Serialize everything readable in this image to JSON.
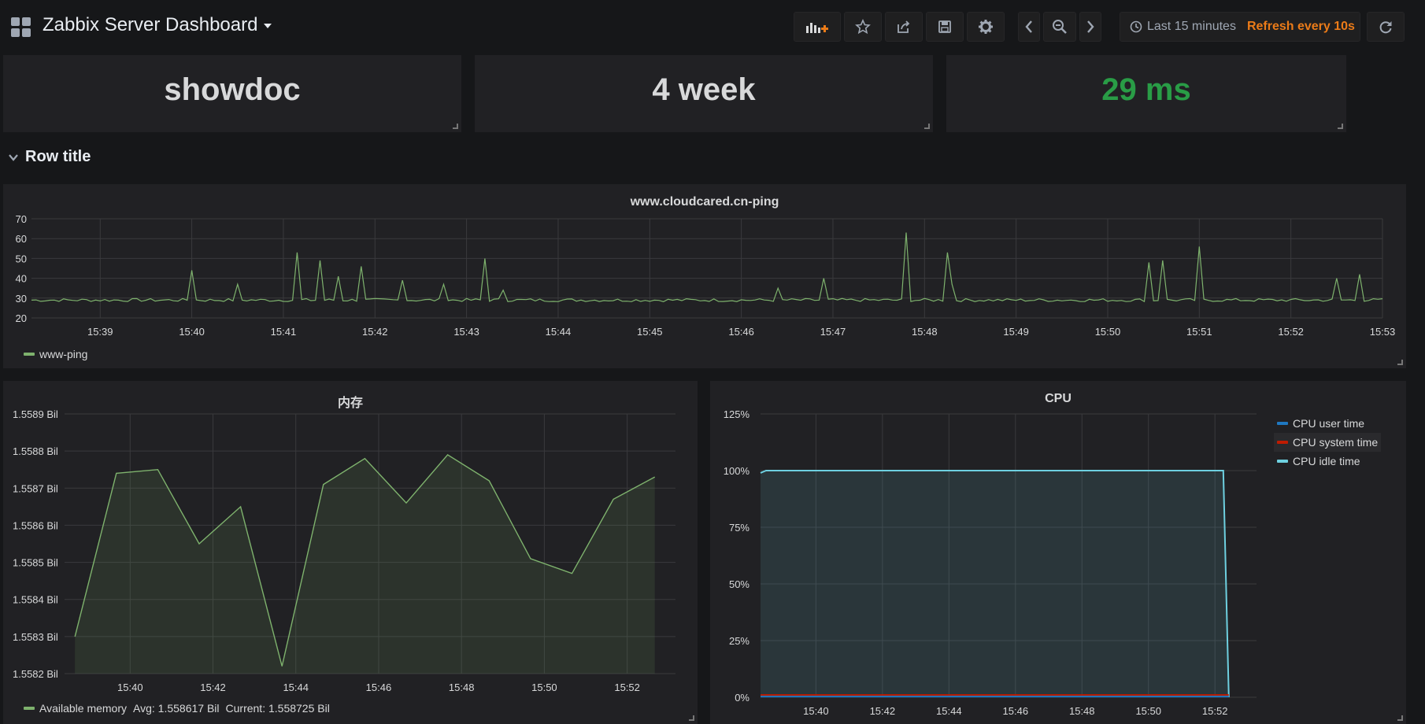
{
  "header": {
    "title": "Zabbix Server Dashboard",
    "time_range": "Last 15 minutes",
    "refresh": "Refresh every 10s"
  },
  "icons": {
    "apps": "grid-icon",
    "add_panel": "add-panel-icon",
    "star": "star-icon",
    "share": "share-icon",
    "save": "save-icon",
    "settings": "gear-icon",
    "prev": "chevron-left-icon",
    "zoom_out": "zoom-out-icon",
    "next": "chevron-right-icon",
    "clock": "clock-icon",
    "refresh": "refresh-icon"
  },
  "colors": {
    "accent_orange": "#eb7b18",
    "ping_green": "#7eb26d",
    "stat_green": "#299c46",
    "cpu_user": "#1f78c1",
    "cpu_system": "#bf1b00",
    "cpu_idle": "#6ed0e0"
  },
  "stats": [
    {
      "value": "showdoc",
      "color": "#d8d9da"
    },
    {
      "value": "4 week",
      "color": "#d8d9da"
    },
    {
      "value": "29 ms",
      "color": "#299c46"
    }
  ],
  "row": {
    "title": "Row title"
  },
  "ping_panel": {
    "title": "www.cloudcared.cn-ping",
    "legend": "www-ping",
    "chart_data": {
      "type": "line",
      "y_ticks": [
        20,
        30,
        40,
        50,
        60,
        70
      ],
      "ylim": [
        20,
        70
      ],
      "x_ticks": [
        "15:39",
        "15:40",
        "15:41",
        "15:42",
        "15:43",
        "15:44",
        "15:45",
        "15:46",
        "15:47",
        "15:48",
        "15:49",
        "15:50",
        "15:51",
        "15:52",
        "15:53"
      ],
      "series": [
        {
          "name": "www-ping",
          "baseline": 29,
          "spikes": [
            [
              "15:40:00",
              44
            ],
            [
              "15:40:30",
              37
            ],
            [
              "15:41:08",
              53
            ],
            [
              "15:41:24",
              49
            ],
            [
              "15:41:36",
              41
            ],
            [
              "15:41:50",
              46
            ],
            [
              "15:42:18",
              39
            ],
            [
              "15:42:45",
              37
            ],
            [
              "15:43:12",
              50
            ],
            [
              "15:43:23",
              34
            ],
            [
              "15:46:24",
              35
            ],
            [
              "15:46:53",
              40
            ],
            [
              "15:47:48",
              63
            ],
            [
              "15:48:16",
              53
            ],
            [
              "15:48:19",
              37
            ],
            [
              "15:50:26",
              48
            ],
            [
              "15:50:36",
              49
            ],
            [
              "15:51:00",
              56
            ],
            [
              "15:52:30",
              40
            ],
            [
              "15:52:46",
              42
            ]
          ]
        }
      ],
      "grid": true,
      "legend_position": "bottom-left"
    }
  },
  "memory_panel": {
    "title": "内存",
    "legend": {
      "name": "Available memory",
      "avg": "Avg: 1.558617 Bil",
      "current": "Current: 1.558725 Bil"
    },
    "chart_data": {
      "type": "area",
      "y_ticks": [
        "1.5582 Bil",
        "1.5583 Bil",
        "1.5584 Bil",
        "1.5585 Bil",
        "1.5586 Bil",
        "1.5587 Bil",
        "1.5588 Bil",
        "1.5589 Bil"
      ],
      "ylim": [
        1.5582,
        1.5589
      ],
      "x_ticks": [
        "15:40",
        "15:42",
        "15:44",
        "15:46",
        "15:48",
        "15:50",
        "15:52"
      ],
      "series": [
        {
          "name": "Available memory",
          "x": [
            "15:38:40",
            "15:39:40",
            "15:40:40",
            "15:41:40",
            "15:42:40",
            "15:43:40",
            "15:44:40",
            "15:45:40",
            "15:46:40",
            "15:47:40",
            "15:48:40",
            "15:49:40",
            "15:50:40",
            "15:51:40",
            "15:52:40"
          ],
          "values": [
            1.5583,
            1.55874,
            1.55875,
            1.55855,
            1.55865,
            1.55822,
            1.55871,
            1.55878,
            1.55866,
            1.55879,
            1.55872,
            1.55851,
            1.55847,
            1.55867,
            1.55873
          ]
        }
      ],
      "grid": true,
      "legend_position": "bottom-left"
    }
  },
  "cpu_panel": {
    "title": "CPU",
    "legend": [
      {
        "name": "CPU user time",
        "color": "#1f78c1"
      },
      {
        "name": "CPU system time",
        "color": "#bf1b00"
      },
      {
        "name": "CPU idle time",
        "color": "#6ed0e0"
      }
    ],
    "chart_data": {
      "type": "area",
      "y_ticks": [
        "0%",
        "25%",
        "50%",
        "75%",
        "100%",
        "125%"
      ],
      "ylim": [
        0,
        125
      ],
      "x_ticks": [
        "15:40",
        "15:42",
        "15:44",
        "15:46",
        "15:48",
        "15:50",
        "15:52"
      ],
      "series": [
        {
          "name": "CPU idle time",
          "x": [
            "15:38:20",
            "15:38:30",
            "15:52:15",
            "15:52:25"
          ],
          "values": [
            99,
            100,
            100,
            0
          ]
        },
        {
          "name": "CPU system time",
          "x": [
            "15:38:20",
            "15:52:25"
          ],
          "values": [
            1,
            1
          ]
        },
        {
          "name": "CPU user time",
          "x": [
            "15:38:20",
            "15:52:25"
          ],
          "values": [
            0.3,
            0.3
          ]
        }
      ],
      "grid": true,
      "legend_position": "right"
    }
  }
}
